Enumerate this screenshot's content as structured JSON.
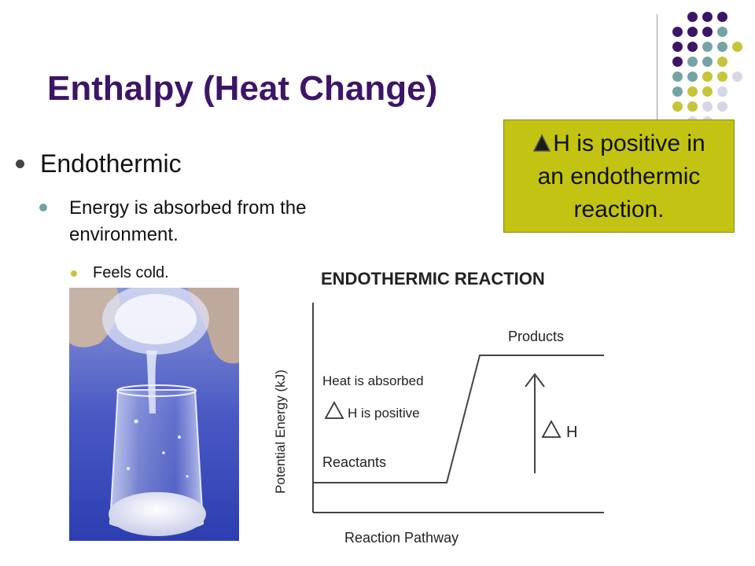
{
  "slide": {
    "title": "Enthalpy (Heat Change)",
    "bullets": {
      "level1": "Endothermic",
      "level2_line1": "Energy is absorbed from the",
      "level2_line2": "environment.",
      "level3": "Feels cold."
    }
  },
  "callout": {
    "symbol": "delta-icon",
    "line1": "H is positive in",
    "line2": "an endothermic",
    "line3": "reaction."
  },
  "diagram": {
    "title": "ENDOTHERMIC REACTION",
    "y_axis_label": "Potential Energy (kJ)",
    "x_axis_label": "Reaction Pathway",
    "products_label": "Products",
    "reactants_label": "Reactants",
    "heat_absorbed_label": "Heat is absorbed",
    "h_positive_label": "H is positive",
    "delta_h_label": "H"
  },
  "colors": {
    "title": "#3d1566",
    "callout_bg": "#c3c313",
    "dot_purple": "#3d1566",
    "dot_teal": "#74a3a6",
    "dot_yellow": "#c7c43a",
    "dot_lavender": "#d6d6e8"
  }
}
